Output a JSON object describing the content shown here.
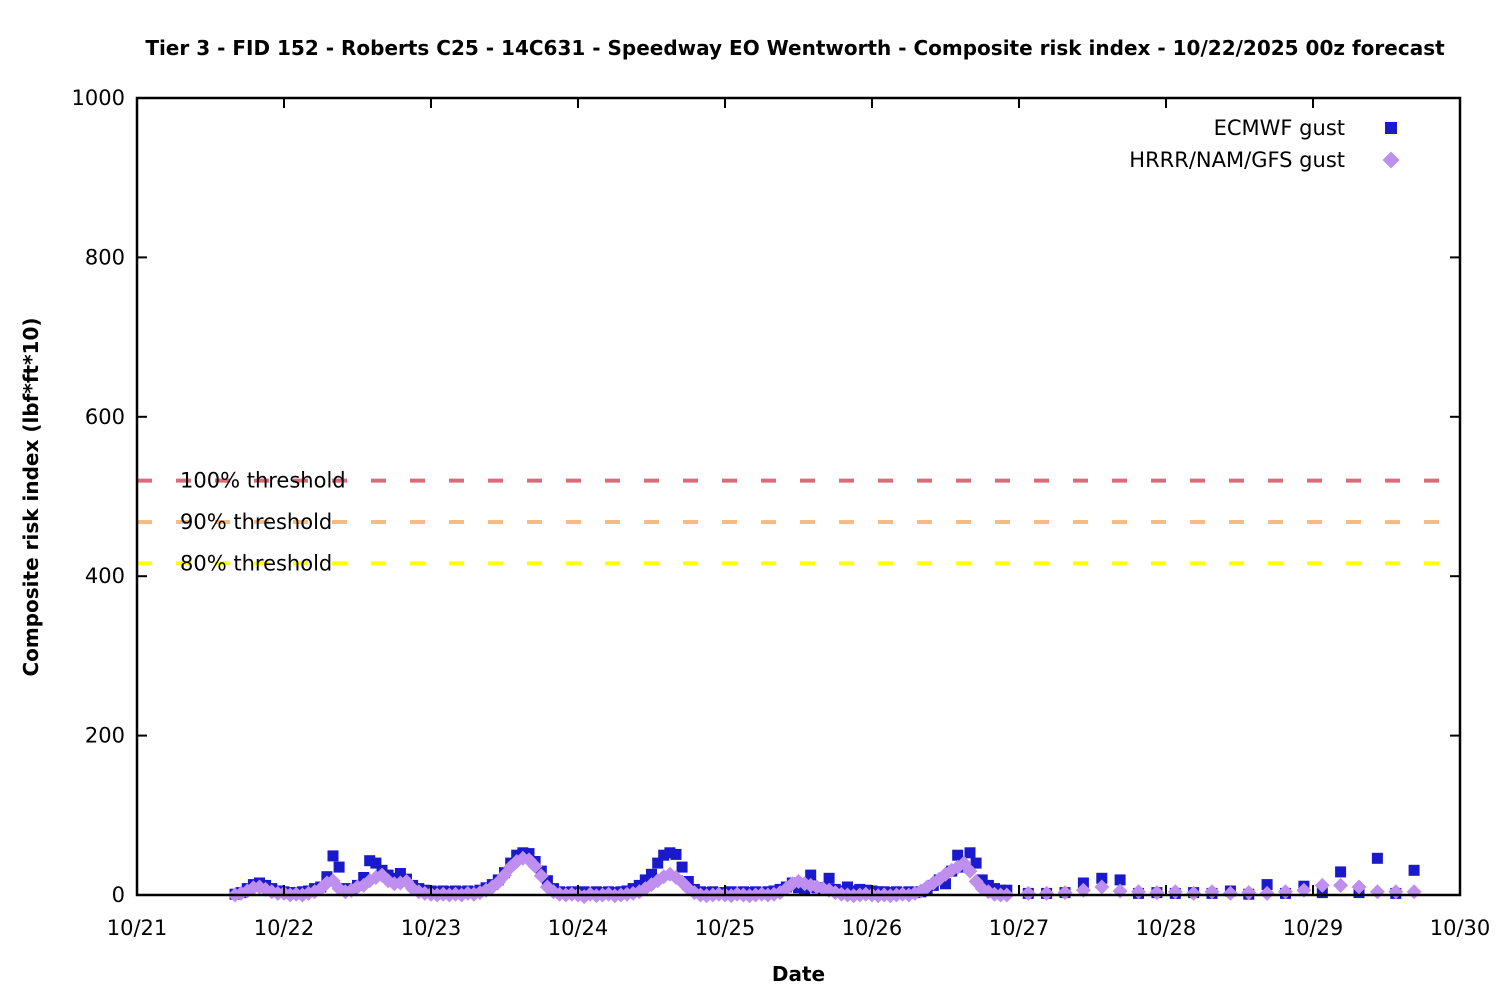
{
  "title": "Tier 3 - FID 152 - Roberts C25 - 14C631 - Speedway EO Wentworth - Composite risk index - 10/22/2025 00z forecast",
  "chart_data": {
    "type": "scatter",
    "title": "Tier 3 - FID 152 - Roberts C25 - 14C631 - Speedway EO Wentworth - Composite risk index - 10/22/2025 00z forecast",
    "xlabel": "Date",
    "ylabel": "Composite risk index (lbf*ft*10)",
    "xlim_days": [
      0,
      9
    ],
    "ylim": [
      0,
      1000
    ],
    "x_tick_labels": [
      "10/21",
      "10/22",
      "10/23",
      "10/24",
      "10/25",
      "10/26",
      "10/27",
      "10/28",
      "10/29",
      "10/30"
    ],
    "y_ticks": [
      0,
      200,
      400,
      600,
      800,
      1000
    ],
    "grid": false,
    "legend_position": "top-right",
    "thresholds": [
      {
        "label": "100% threshold",
        "value": 520,
        "color": "#dc6a7a"
      },
      {
        "label": "90% threshold",
        "value": 468,
        "color": "#f9bc80"
      },
      {
        "label": "80% threshold",
        "value": 416,
        "color": "#ffff00"
      }
    ],
    "series": [
      {
        "name": "ECMWF gust",
        "marker": "square",
        "color": "#1a1acc"
      },
      {
        "name": "HRRR/NAM/GFS gust",
        "marker": "diamond",
        "color": "#bf8ff0"
      }
    ],
    "sample_columns": [
      "day_offset_from_10_21",
      "ECMWF gust",
      "HRRR/NAM/GFS gust"
    ],
    "samples": [
      [
        0.667,
        1,
        0
      ],
      [
        0.708,
        3,
        2
      ],
      [
        0.75,
        8,
        5
      ],
      [
        0.792,
        13,
        9
      ],
      [
        0.833,
        15,
        10
      ],
      [
        0.875,
        12,
        7
      ],
      [
        0.917,
        8,
        4
      ],
      [
        0.958,
        5,
        2
      ],
      [
        1.0,
        4,
        2
      ],
      [
        1.042,
        3,
        0
      ],
      [
        1.083,
        3,
        1
      ],
      [
        1.125,
        4,
        0
      ],
      [
        1.167,
        5,
        2
      ],
      [
        1.208,
        8,
        4
      ],
      [
        1.25,
        10,
        8
      ],
      [
        1.292,
        23,
        15
      ],
      [
        1.333,
        49,
        18
      ],
      [
        1.375,
        35,
        8
      ],
      [
        1.417,
        8,
        4
      ],
      [
        1.458,
        6,
        6
      ],
      [
        1.5,
        12,
        10
      ],
      [
        1.542,
        22,
        12
      ],
      [
        1.583,
        43,
        18
      ],
      [
        1.625,
        40,
        22
      ],
      [
        1.667,
        31,
        25
      ],
      [
        1.708,
        25,
        18
      ],
      [
        1.75,
        21,
        14
      ],
      [
        1.792,
        27,
        15
      ],
      [
        1.833,
        20,
        17
      ],
      [
        1.875,
        12,
        8
      ],
      [
        1.917,
        8,
        4
      ],
      [
        1.958,
        6,
        2
      ],
      [
        2.0,
        5,
        1
      ],
      [
        2.042,
        4,
        0
      ],
      [
        2.083,
        5,
        1
      ],
      [
        2.125,
        4,
        0
      ],
      [
        2.167,
        5,
        1
      ],
      [
        2.208,
        4,
        0
      ],
      [
        2.25,
        5,
        2
      ],
      [
        2.292,
        4,
        1
      ],
      [
        2.333,
        6,
        3
      ],
      [
        2.375,
        9,
        6
      ],
      [
        2.417,
        13,
        10
      ],
      [
        2.458,
        19,
        16
      ],
      [
        2.5,
        28,
        25
      ],
      [
        2.542,
        40,
        35
      ],
      [
        2.583,
        50,
        42
      ],
      [
        2.625,
        53,
        46
      ],
      [
        2.667,
        52,
        44
      ],
      [
        2.708,
        42,
        36
      ],
      [
        2.75,
        30,
        24
      ],
      [
        2.792,
        18,
        10
      ],
      [
        2.833,
        8,
        4
      ],
      [
        2.875,
        4,
        1
      ],
      [
        2.917,
        3,
        0
      ],
      [
        2.958,
        4,
        1
      ],
      [
        3.0,
        3,
        0
      ],
      [
        3.042,
        4,
        -2
      ],
      [
        3.083,
        3,
        1
      ],
      [
        3.125,
        4,
        -1
      ],
      [
        3.167,
        3,
        0
      ],
      [
        3.208,
        4,
        1
      ],
      [
        3.25,
        3,
        -1
      ],
      [
        3.292,
        4,
        0
      ],
      [
        3.333,
        5,
        1
      ],
      [
        3.375,
        8,
        2
      ],
      [
        3.417,
        12,
        4
      ],
      [
        3.458,
        19,
        8
      ],
      [
        3.5,
        26,
        13
      ],
      [
        3.542,
        40,
        18
      ],
      [
        3.583,
        50,
        23
      ],
      [
        3.625,
        53,
        26
      ],
      [
        3.667,
        51,
        22
      ],
      [
        3.708,
        35,
        16
      ],
      [
        3.75,
        17,
        8
      ],
      [
        3.792,
        7,
        3
      ],
      [
        3.833,
        4,
        0
      ],
      [
        3.875,
        3,
        -1
      ],
      [
        3.917,
        4,
        0
      ],
      [
        3.958,
        3,
        1
      ],
      [
        4.0,
        3,
        0
      ],
      [
        4.042,
        4,
        -1
      ],
      [
        4.083,
        3,
        1
      ],
      [
        4.125,
        4,
        0
      ],
      [
        4.167,
        3,
        -1
      ],
      [
        4.208,
        4,
        0
      ],
      [
        4.25,
        3,
        1
      ],
      [
        4.292,
        4,
        0
      ],
      [
        4.333,
        5,
        1
      ],
      [
        4.375,
        7,
        3
      ],
      [
        4.417,
        10,
        8
      ],
      [
        4.458,
        15,
        14
      ],
      [
        4.5,
        9,
        17
      ],
      [
        4.542,
        8,
        14
      ],
      [
        4.583,
        25,
        12
      ],
      [
        4.625,
        9,
        10
      ],
      [
        4.667,
        8,
        8
      ],
      [
        4.708,
        21,
        6
      ],
      [
        4.75,
        7,
        3
      ],
      [
        4.792,
        5,
        1
      ],
      [
        4.833,
        10,
        0
      ],
      [
        4.875,
        5,
        -1
      ],
      [
        4.917,
        7,
        0
      ],
      [
        4.958,
        6,
        1
      ],
      [
        5.0,
        5,
        0
      ],
      [
        5.042,
        4,
        -1
      ],
      [
        5.083,
        4,
        0
      ],
      [
        5.125,
        3,
        -1
      ],
      [
        5.167,
        4,
        0
      ],
      [
        5.208,
        3,
        1
      ],
      [
        5.25,
        4,
        0
      ],
      [
        5.292,
        3,
        2
      ],
      [
        5.333,
        4,
        5
      ],
      [
        5.375,
        6,
        10
      ],
      [
        5.417,
        12,
        15
      ],
      [
        5.458,
        19,
        20
      ],
      [
        5.5,
        14,
        26
      ],
      [
        5.542,
        30,
        31
      ],
      [
        5.583,
        50,
        35
      ],
      [
        5.625,
        35,
        40
      ],
      [
        5.667,
        53,
        30
      ],
      [
        5.708,
        40,
        17
      ],
      [
        5.75,
        19,
        8
      ],
      [
        5.792,
        12,
        4
      ],
      [
        5.833,
        8,
        1
      ],
      [
        5.875,
        6,
        0
      ],
      [
        5.917,
        6,
        0
      ],
      [
        6.063,
        2,
        2
      ],
      [
        6.188,
        2,
        2
      ],
      [
        6.313,
        3,
        3
      ],
      [
        6.438,
        15,
        6
      ],
      [
        6.563,
        21,
        10
      ],
      [
        6.688,
        19,
        5
      ],
      [
        6.813,
        2,
        4
      ],
      [
        6.938,
        3,
        3
      ],
      [
        7.063,
        2,
        4
      ],
      [
        7.188,
        3,
        2
      ],
      [
        7.313,
        2,
        4
      ],
      [
        7.438,
        5,
        2
      ],
      [
        7.563,
        1,
        3
      ],
      [
        7.688,
        13,
        2
      ],
      [
        7.813,
        2,
        4
      ],
      [
        7.938,
        11,
        6
      ],
      [
        8.063,
        3,
        12
      ],
      [
        8.188,
        29,
        12
      ],
      [
        8.313,
        3,
        10
      ],
      [
        8.438,
        46,
        4
      ],
      [
        8.563,
        2,
        4
      ],
      [
        8.688,
        31,
        4
      ]
    ]
  }
}
